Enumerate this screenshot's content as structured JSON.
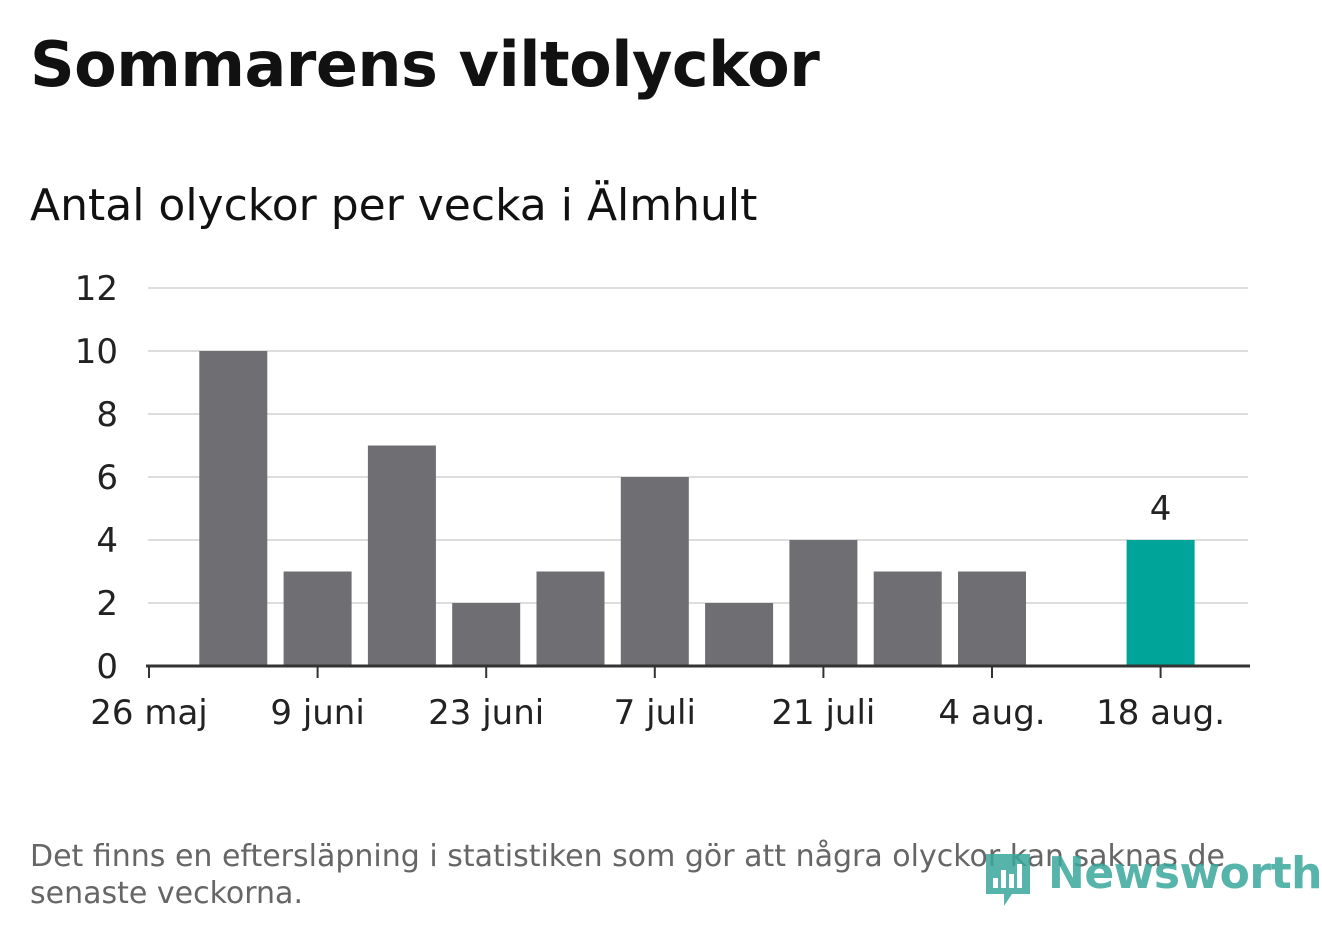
{
  "header": {
    "title": "Sommarens viltolyckor",
    "subtitle": "Antal olyckor per vecka i Älmhult"
  },
  "footer": {
    "note": "Det finns en eftersläpning i statistiken som gör att några olyckor kan saknas de senaste veckorna.",
    "logo_text": "Newsworthy"
  },
  "colors": {
    "bar": "#6f6e73",
    "highlight": "#00a499",
    "grid": "#dddddd",
    "axis": "#333333",
    "logo": "#3aa79c"
  },
  "chart_data": {
    "type": "bar",
    "title": "Sommarens viltolyckor",
    "subtitle": "Antal olyckor per vecka i Älmhult",
    "xlabel": "",
    "ylabel": "",
    "ylim": [
      0,
      12
    ],
    "yticks": [
      0,
      2,
      4,
      6,
      8,
      10,
      12
    ],
    "xticks": [
      {
        "label": "26 maj",
        "week": 0
      },
      {
        "label": "9 juni",
        "week": 2
      },
      {
        "label": "23 juni",
        "week": 4
      },
      {
        "label": "7 juli",
        "week": 6
      },
      {
        "label": "21 juli",
        "week": 8
      },
      {
        "label": "4 aug.",
        "week": 10
      },
      {
        "label": "18 aug.",
        "week": 12
      }
    ],
    "values": [
      10,
      3,
      7,
      2,
      3,
      6,
      2,
      4,
      3,
      3,
      null,
      4
    ],
    "highlight_index": 11,
    "highlight_label": "4",
    "grid": true,
    "legend": "none"
  }
}
